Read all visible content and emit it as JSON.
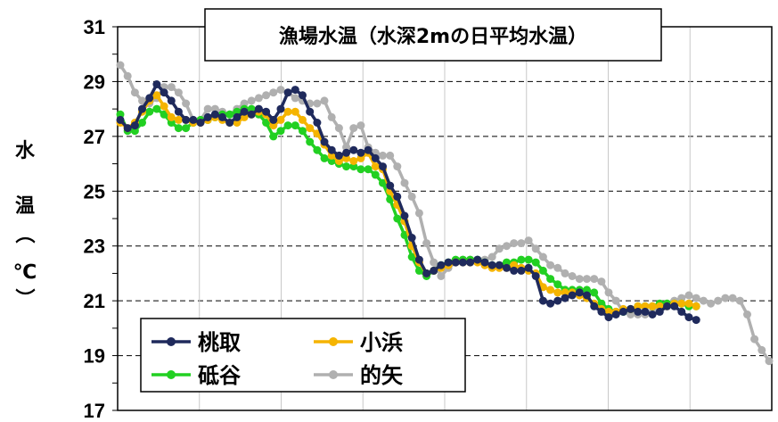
{
  "chart_data": {
    "type": "line",
    "title": "漁場水温（水深2mの日平均水温）",
    "ylabel_chars": [
      "水",
      "温",
      "（",
      "℃",
      "）"
    ],
    "ylim": [
      17,
      31
    ],
    "yticks": [
      17,
      19,
      21,
      23,
      25,
      27,
      29,
      31
    ],
    "grid": true,
    "legend_position": "bottom-left",
    "series": [
      {
        "name": "桃取",
        "color": "#1f2a5c",
        "values": [
          27.6,
          27.3,
          27.4,
          28.0,
          28.4,
          28.9,
          28.6,
          28.3,
          27.9,
          27.6,
          27.6,
          27.5,
          27.7,
          27.8,
          27.7,
          27.5,
          27.7,
          27.9,
          27.8,
          28.0,
          27.9,
          27.6,
          28.0,
          28.6,
          28.7,
          28.5,
          27.9,
          27.5,
          26.8,
          26.5,
          26.3,
          26.4,
          26.5,
          26.4,
          26.5,
          26.2,
          25.9,
          25.2,
          24.8,
          24.1,
          23.3,
          22.5,
          22.0,
          22.1,
          22.3,
          22.4,
          22.4,
          22.4,
          22.4,
          22.5,
          22.4,
          22.3,
          22.3,
          22.2,
          22.1,
          22.1,
          22.2,
          21.9,
          21.0,
          20.9,
          21.0,
          21.1,
          21.2,
          21.3,
          21.2,
          20.8,
          20.6,
          20.4,
          20.5,
          20.6,
          20.7,
          20.6,
          20.6,
          20.5,
          20.6,
          20.8,
          20.8,
          20.6,
          20.4,
          20.3
        ],
        "x": [
          1,
          2,
          3,
          4,
          5,
          6,
          7,
          8,
          9,
          10,
          11,
          12,
          13,
          14,
          15,
          16,
          17,
          18,
          19,
          20,
          21,
          22,
          23,
          24,
          25,
          26,
          27,
          28,
          29,
          30,
          31,
          32,
          33,
          34,
          35,
          36,
          37,
          38,
          39,
          40,
          41,
          42,
          43,
          44,
          45,
          46,
          47,
          48,
          49,
          50,
          51,
          52,
          53,
          54,
          55,
          56,
          57,
          58,
          59,
          60,
          61,
          62,
          63,
          64,
          65,
          66,
          67,
          68,
          69,
          70,
          71,
          72,
          73,
          74,
          75,
          76,
          77,
          78,
          79,
          80
        ]
      },
      {
        "name": "小浜",
        "color": "#f5b400",
        "values": [
          27.5,
          27.3,
          27.5,
          27.9,
          28.3,
          28.5,
          28.1,
          27.7,
          27.6,
          27.6,
          27.5,
          27.5,
          27.6,
          27.7,
          27.6,
          27.5,
          27.5,
          27.7,
          27.8,
          27.9,
          27.8,
          27.4,
          27.6,
          27.9,
          27.9,
          27.6,
          27.3,
          27.1,
          26.7,
          26.3,
          26.1,
          26.2,
          26.1,
          26.2,
          26.4,
          25.9,
          25.8,
          25.0,
          24.5,
          23.9,
          23.0,
          22.4,
          22.0,
          22.1,
          22.2,
          22.3,
          22.4,
          22.4,
          22.4,
          22.4,
          22.3,
          22.2,
          22.2,
          22.2,
          22.3,
          22.2,
          22.1,
          22.0,
          21.5,
          21.4,
          21.3,
          21.3,
          21.3,
          21.2,
          21.1,
          20.9,
          20.7,
          20.6,
          20.6,
          20.7,
          20.7,
          20.8,
          20.8,
          20.8,
          20.8,
          20.8,
          20.9,
          20.9,
          20.9,
          20.8
        ],
        "x": [
          1,
          2,
          3,
          4,
          5,
          6,
          7,
          8,
          9,
          10,
          11,
          12,
          13,
          14,
          15,
          16,
          17,
          18,
          19,
          20,
          21,
          22,
          23,
          24,
          25,
          26,
          27,
          28,
          29,
          30,
          31,
          32,
          33,
          34,
          35,
          36,
          37,
          38,
          39,
          40,
          41,
          42,
          43,
          44,
          45,
          46,
          47,
          48,
          49,
          50,
          51,
          52,
          53,
          54,
          55,
          56,
          57,
          58,
          59,
          60,
          61,
          62,
          63,
          64,
          65,
          66,
          67,
          68,
          69,
          70,
          71,
          72,
          73,
          74,
          75,
          76,
          77,
          78,
          79,
          80
        ]
      },
      {
        "name": "砥谷",
        "color": "#22d022",
        "values": [
          27.8,
          27.2,
          27.2,
          27.5,
          27.9,
          28.0,
          27.8,
          27.5,
          27.3,
          27.3,
          27.5,
          27.6,
          27.6,
          27.7,
          27.8,
          27.8,
          27.9,
          28.0,
          28.0,
          27.8,
          27.5,
          27.0,
          27.2,
          27.4,
          27.4,
          27.2,
          26.8,
          26.5,
          26.2,
          26.1,
          26.0,
          25.9,
          25.9,
          25.8,
          25.8,
          25.6,
          25.3,
          24.7,
          24.0,
          23.4,
          22.6,
          22.1,
          21.9,
          22.1,
          22.3,
          22.4,
          22.5,
          22.5,
          22.5,
          22.5,
          22.4,
          22.3,
          22.3,
          22.4,
          22.4,
          22.5,
          22.5,
          22.4,
          22.1,
          21.8,
          21.6,
          21.4,
          21.4,
          21.4,
          21.4,
          21.3,
          20.9,
          20.7,
          20.6,
          20.6,
          20.7,
          20.8,
          20.8,
          20.8,
          20.9,
          20.9,
          20.9,
          20.9,
          20.8,
          20.8
        ],
        "x": [
          1,
          2,
          3,
          4,
          5,
          6,
          7,
          8,
          9,
          10,
          11,
          12,
          13,
          14,
          15,
          16,
          17,
          18,
          19,
          20,
          21,
          22,
          23,
          24,
          25,
          26,
          27,
          28,
          29,
          30,
          31,
          32,
          33,
          34,
          35,
          36,
          37,
          38,
          39,
          40,
          41,
          42,
          43,
          44,
          45,
          46,
          47,
          48,
          49,
          50,
          51,
          52,
          53,
          54,
          55,
          56,
          57,
          58,
          59,
          60,
          61,
          62,
          63,
          64,
          65,
          66,
          67,
          68,
          69,
          70,
          71,
          72,
          73,
          74,
          75,
          76,
          77,
          78,
          79,
          80
        ]
      },
      {
        "name": "的矢",
        "color": "#b0b0b0",
        "values": [
          29.6,
          29.2,
          28.6,
          28.3,
          28.2,
          28.4,
          28.8,
          28.8,
          28.6,
          28.2,
          27.6,
          27.6,
          28.0,
          28.0,
          27.9,
          27.8,
          28.0,
          28.2,
          28.3,
          28.4,
          28.5,
          28.6,
          28.7,
          28.6,
          28.4,
          28.3,
          28.2,
          28.2,
          28.3,
          27.7,
          27.3,
          26.6,
          27.3,
          27.4,
          26.6,
          26.4,
          26.3,
          26.3,
          25.9,
          25.3,
          24.8,
          24.2,
          23.1,
          22.4,
          21.9,
          22.2,
          22.4,
          22.5,
          22.5,
          22.5,
          22.5,
          22.6,
          22.9,
          23.0,
          23.1,
          23.1,
          23.2,
          22.9,
          22.6,
          22.3,
          22.2,
          22.0,
          21.9,
          21.8,
          21.8,
          21.8,
          21.7,
          21.3,
          21.0,
          20.6,
          20.5,
          20.5,
          20.5,
          20.6,
          20.7,
          20.9,
          21.0,
          21.1,
          21.2,
          21.1,
          21.0,
          20.9,
          21.0,
          21.1,
          21.1,
          21.0,
          20.5,
          19.6,
          19.2,
          18.8
        ],
        "x": [
          1,
          2,
          3,
          4,
          5,
          6,
          7,
          8,
          9,
          10,
          11,
          12,
          13,
          14,
          15,
          16,
          17,
          18,
          19,
          20,
          21,
          22,
          23,
          24,
          25,
          26,
          27,
          28,
          29,
          30,
          31,
          32,
          33,
          34,
          35,
          36,
          37,
          38,
          39,
          40,
          41,
          42,
          43,
          44,
          45,
          46,
          47,
          48,
          49,
          50,
          51,
          52,
          53,
          54,
          55,
          56,
          57,
          58,
          59,
          60,
          61,
          62,
          63,
          64,
          65,
          66,
          67,
          68,
          69,
          70,
          71,
          72,
          73,
          74,
          75,
          76,
          77,
          78,
          79,
          80,
          81,
          82,
          83,
          84,
          85,
          86,
          87,
          88,
          89,
          90
        ]
      }
    ]
  }
}
